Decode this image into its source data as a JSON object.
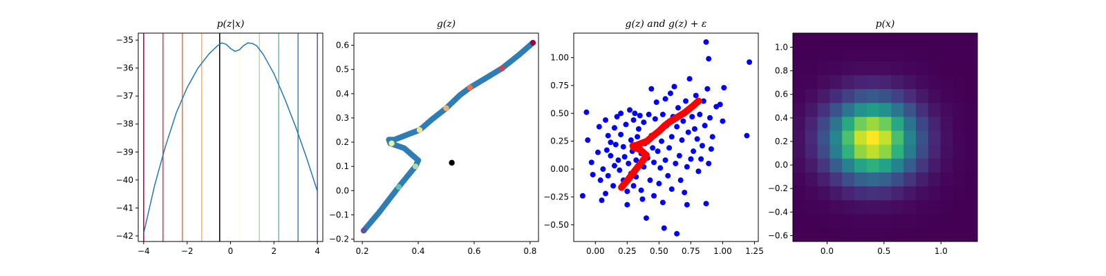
{
  "chart_data": [
    {
      "type": "line",
      "title": "p(z|x)",
      "xlabel": "",
      "ylabel": "",
      "xlim": [
        -4.25,
        4.25
      ],
      "ylim": [
        -42.2,
        -34.75
      ],
      "xticks": [
        -4,
        -2,
        0,
        2,
        4
      ],
      "xtick_labels": [
        "−4",
        "−2",
        "0",
        "2",
        "4"
      ],
      "yticks": [
        -42,
        -41,
        -40,
        -39,
        -38,
        -37,
        -36,
        -35
      ],
      "ytick_labels": [
        "−42",
        "−41",
        "−40",
        "−39",
        "−38",
        "−37",
        "−36",
        "−35"
      ],
      "series": [
        {
          "color": "#1f77b4",
          "x": [
            -4.0,
            -3.5,
            -3.0,
            -2.5,
            -2.0,
            -1.5,
            -1.0,
            -0.6,
            -0.4,
            -0.2,
            0.0,
            0.2,
            0.4,
            0.6,
            0.8,
            1.0,
            1.2,
            1.5,
            2.0,
            2.5,
            3.0,
            3.5,
            4.0
          ],
          "y": [
            -41.9,
            -40.2,
            -38.8,
            -37.6,
            -36.7,
            -36.0,
            -35.5,
            -35.2,
            -35.1,
            -35.15,
            -35.3,
            -35.4,
            -35.35,
            -35.2,
            -35.1,
            -35.12,
            -35.2,
            -35.5,
            -36.2,
            -37.1,
            -38.1,
            -39.2,
            -40.4
          ]
        }
      ],
      "vlines": [
        {
          "x": -4.0,
          "color": "#9e0142"
        },
        {
          "x": -3.11,
          "color": "#d53e4f"
        },
        {
          "x": -2.22,
          "color": "#f46d43"
        },
        {
          "x": -1.33,
          "color": "#fdae61"
        },
        {
          "x": -0.5,
          "color": "#000000"
        },
        {
          "x": 0.44,
          "color": "#ffffbf"
        },
        {
          "x": 1.33,
          "color": "#abdda4"
        },
        {
          "x": 2.22,
          "color": "#66c2a5"
        },
        {
          "x": 3.11,
          "color": "#3288bd"
        },
        {
          "x": 4.0,
          "color": "#5e4fa2"
        }
      ]
    },
    {
      "type": "scatter",
      "title": "g(z)",
      "xlabel": "",
      "ylabel": "",
      "xlim": [
        0.17,
        0.83
      ],
      "ylim": [
        -0.21,
        0.65
      ],
      "xticks": [
        0.2,
        0.4,
        0.6,
        0.8
      ],
      "xtick_labels": [
        "0.2",
        "0.4",
        "0.6",
        "0.8"
      ],
      "yticks": [
        -0.2,
        -0.1,
        0.0,
        0.1,
        0.2,
        0.3,
        0.4,
        0.5,
        0.6
      ],
      "ytick_labels": [
        "−0.2",
        "−0.1",
        "0.0",
        "0.1",
        "0.2",
        "0.3",
        "0.4",
        "0.5",
        "0.6"
      ],
      "curve_color": "#2e7db5",
      "curve": [
        [
          0.205,
          -0.165
        ],
        [
          0.26,
          -0.09
        ],
        [
          0.33,
          0.015
        ],
        [
          0.39,
          0.1
        ],
        [
          0.4,
          0.125
        ],
        [
          0.35,
          0.175
        ],
        [
          0.3,
          0.195
        ],
        [
          0.295,
          0.21
        ],
        [
          0.315,
          0.21
        ],
        [
          0.37,
          0.235
        ],
        [
          0.405,
          0.25
        ],
        [
          0.45,
          0.295
        ],
        [
          0.5,
          0.34
        ],
        [
          0.55,
          0.395
        ],
        [
          0.585,
          0.425
        ],
        [
          0.65,
          0.47
        ],
        [
          0.7,
          0.505
        ],
        [
          0.76,
          0.56
        ],
        [
          0.81,
          0.61
        ]
      ],
      "points": [
        {
          "x": 0.205,
          "y": -0.165,
          "color": "#5e4fa2"
        },
        {
          "x": 0.33,
          "y": 0.015,
          "color": "#66c2a5"
        },
        {
          "x": 0.39,
          "y": 0.1,
          "color": "#abdda4"
        },
        {
          "x": 0.305,
          "y": 0.195,
          "color": "#e6f598"
        },
        {
          "x": 0.405,
          "y": 0.25,
          "color": "#fee08b"
        },
        {
          "x": 0.5,
          "y": 0.34,
          "color": "#fdae61"
        },
        {
          "x": 0.585,
          "y": 0.425,
          "color": "#f46d43"
        },
        {
          "x": 0.7,
          "y": 0.505,
          "color": "#d53e4f"
        },
        {
          "x": 0.81,
          "y": 0.61,
          "color": "#9e0142"
        },
        {
          "x": 0.52,
          "y": 0.115,
          "color": "#000000"
        }
      ]
    },
    {
      "type": "scatter",
      "title": "g(z) and g(z) + ε",
      "xlabel": "",
      "ylabel": "",
      "xlim": [
        -0.17,
        1.28
      ],
      "ylim": [
        -0.65,
        1.22
      ],
      "xticks": [
        0.0,
        0.25,
        0.5,
        0.75,
        1.0,
        1.25
      ],
      "xtick_labels": [
        "0.00",
        "0.25",
        "0.50",
        "0.75",
        "1.00",
        "1.25"
      ],
      "yticks": [
        -0.5,
        -0.25,
        0.0,
        0.25,
        0.5,
        0.75,
        1.0
      ],
      "ytick_labels": [
        "−0.50",
        "−0.25",
        "0.00",
        "0.25",
        "0.50",
        "0.75",
        "1.00"
      ],
      "noisy_color": "#0000ff",
      "noisy_points": [
        [
          -0.1,
          -0.24
        ],
        [
          -0.07,
          0.51
        ],
        [
          -0.06,
          0.26
        ],
        [
          -0.03,
          0.06
        ],
        [
          -0.02,
          -0.05
        ],
        [
          0.02,
          0.15
        ],
        [
          0.03,
          0.38
        ],
        [
          0.04,
          -0.1
        ],
        [
          0.05,
          -0.28
        ],
        [
          0.06,
          0.0
        ],
        [
          0.08,
          -0.22
        ],
        [
          0.08,
          0.44
        ],
        [
          0.09,
          0.17
        ],
        [
          0.1,
          -0.06
        ],
        [
          0.1,
          0.3
        ],
        [
          0.12,
          0.12
        ],
        [
          0.12,
          0.24
        ],
        [
          0.14,
          -0.15
        ],
        [
          0.15,
          0.37
        ],
        [
          0.15,
          0.03
        ],
        [
          0.16,
          0.22
        ],
        [
          0.17,
          0.47
        ],
        [
          0.18,
          0.08
        ],
        [
          0.19,
          -0.01
        ],
        [
          0.2,
          0.5
        ],
        [
          0.2,
          0.31
        ],
        [
          0.22,
          -0.1
        ],
        [
          0.22,
          0.2
        ],
        [
          0.23,
          0.11
        ],
        [
          0.24,
          0.4
        ],
        [
          0.25,
          -0.2
        ],
        [
          0.25,
          -0.32
        ],
        [
          0.26,
          0.05
        ],
        [
          0.27,
          0.53
        ],
        [
          0.28,
          0.26
        ],
        [
          0.28,
          -0.04
        ],
        [
          0.29,
          0.16
        ],
        [
          0.3,
          -0.15
        ],
        [
          0.3,
          0.44
        ],
        [
          0.31,
          0.5
        ],
        [
          0.32,
          0.08
        ],
        [
          0.32,
          -0.07
        ],
        [
          0.33,
          0.29
        ],
        [
          0.34,
          0.36
        ],
        [
          0.35,
          0.48
        ],
        [
          0.36,
          -0.19
        ],
        [
          0.36,
          0.14
        ],
        [
          0.37,
          -0.27
        ],
        [
          0.38,
          0.02
        ],
        [
          0.38,
          0.42
        ],
        [
          0.39,
          0.23
        ],
        [
          0.4,
          -0.44
        ],
        [
          0.41,
          0.1
        ],
        [
          0.42,
          0.49
        ],
        [
          0.43,
          -0.1
        ],
        [
          0.44,
          0.72
        ],
        [
          0.44,
          0.3
        ],
        [
          0.45,
          0.19
        ],
        [
          0.46,
          -0.24
        ],
        [
          0.46,
          0.06
        ],
        [
          0.47,
          0.45
        ],
        [
          0.48,
          0.6
        ],
        [
          0.49,
          0.16
        ],
        [
          0.5,
          -0.13
        ],
        [
          0.5,
          0.34
        ],
        [
          0.51,
          0.01
        ],
        [
          0.52,
          0.25
        ],
        [
          0.53,
          0.49
        ],
        [
          0.53,
          -0.3
        ],
        [
          0.54,
          -0.53
        ],
        [
          0.55,
          0.08
        ],
        [
          0.55,
          0.63
        ],
        [
          0.56,
          0.39
        ],
        [
          0.57,
          -0.06
        ],
        [
          0.58,
          0.19
        ],
        [
          0.59,
          0.68
        ],
        [
          0.6,
          0.29
        ],
        [
          0.6,
          -0.18
        ],
        [
          0.61,
          0.47
        ],
        [
          0.62,
          0.74
        ],
        [
          0.63,
          0.05
        ],
        [
          0.64,
          -0.58
        ],
        [
          0.64,
          0.38
        ],
        [
          0.65,
          0.55
        ],
        [
          0.66,
          0.12
        ],
        [
          0.67,
          -0.1
        ],
        [
          0.68,
          0.26
        ],
        [
          0.69,
          0.43
        ],
        [
          0.7,
          -0.21
        ],
        [
          0.71,
          0.61
        ],
        [
          0.72,
          0.02
        ],
        [
          0.72,
          -0.32
        ],
        [
          0.73,
          0.33
        ],
        [
          0.74,
          0.81
        ],
        [
          0.75,
          0.09
        ],
        [
          0.76,
          0.47
        ],
        [
          0.77,
          0.16
        ],
        [
          0.78,
          0.36
        ],
        [
          0.79,
          0.66
        ],
        [
          0.8,
          0.27
        ],
        [
          0.81,
          -0.02
        ],
        [
          0.82,
          0.49
        ],
        [
          0.83,
          0.09
        ],
        [
          0.84,
          0.21
        ],
        [
          0.85,
          0.61
        ],
        [
          0.86,
          0.39
        ],
        [
          0.87,
          1.14
        ],
        [
          0.87,
          -0.31
        ],
        [
          0.88,
          0.72
        ],
        [
          0.89,
          0.05
        ],
        [
          0.89,
          0.99
        ],
        [
          0.9,
          0.46
        ],
        [
          0.91,
          0.18
        ],
        [
          0.92,
          0.29
        ],
        [
          0.95,
          0.56
        ],
        [
          0.98,
          0.58
        ],
        [
          1.0,
          0.43
        ],
        [
          1.01,
          0.73
        ],
        [
          1.19,
          0.3
        ],
        [
          1.21,
          0.96
        ]
      ],
      "mean_color": "#ff0000",
      "mean_curve": [
        [
          0.205,
          -0.165
        ],
        [
          0.26,
          -0.09
        ],
        [
          0.33,
          0.015
        ],
        [
          0.39,
          0.1
        ],
        [
          0.4,
          0.125
        ],
        [
          0.35,
          0.175
        ],
        [
          0.3,
          0.195
        ],
        [
          0.295,
          0.21
        ],
        [
          0.315,
          0.21
        ],
        [
          0.37,
          0.235
        ],
        [
          0.405,
          0.25
        ],
        [
          0.45,
          0.295
        ],
        [
          0.5,
          0.34
        ],
        [
          0.55,
          0.395
        ],
        [
          0.585,
          0.425
        ],
        [
          0.65,
          0.47
        ],
        [
          0.7,
          0.505
        ],
        [
          0.76,
          0.56
        ],
        [
          0.81,
          0.61
        ]
      ]
    },
    {
      "type": "heatmap",
      "title": "p(x)",
      "xlabel": "",
      "ylabel": "",
      "colormap": "viridis",
      "xlim": [
        -0.3,
        1.32
      ],
      "ylim": [
        -0.65,
        1.12
      ],
      "xticks": [
        0.0,
        0.5,
        1.0
      ],
      "xtick_labels": [
        "0.0",
        "0.5",
        "1.0"
      ],
      "yticks": [
        -0.6,
        -0.4,
        -0.2,
        0.0,
        0.2,
        0.4,
        0.6,
        0.8,
        1.0
      ],
      "ytick_labels": [
        "−0.6",
        "−0.4",
        "−0.2",
        "0.0",
        "0.2",
        "0.4",
        "0.6",
        "0.8",
        "1.0"
      ],
      "grid_shape": [
        15,
        15
      ],
      "center": [
        0.4,
        0.22
      ],
      "spread": [
        0.26,
        0.23
      ]
    }
  ]
}
